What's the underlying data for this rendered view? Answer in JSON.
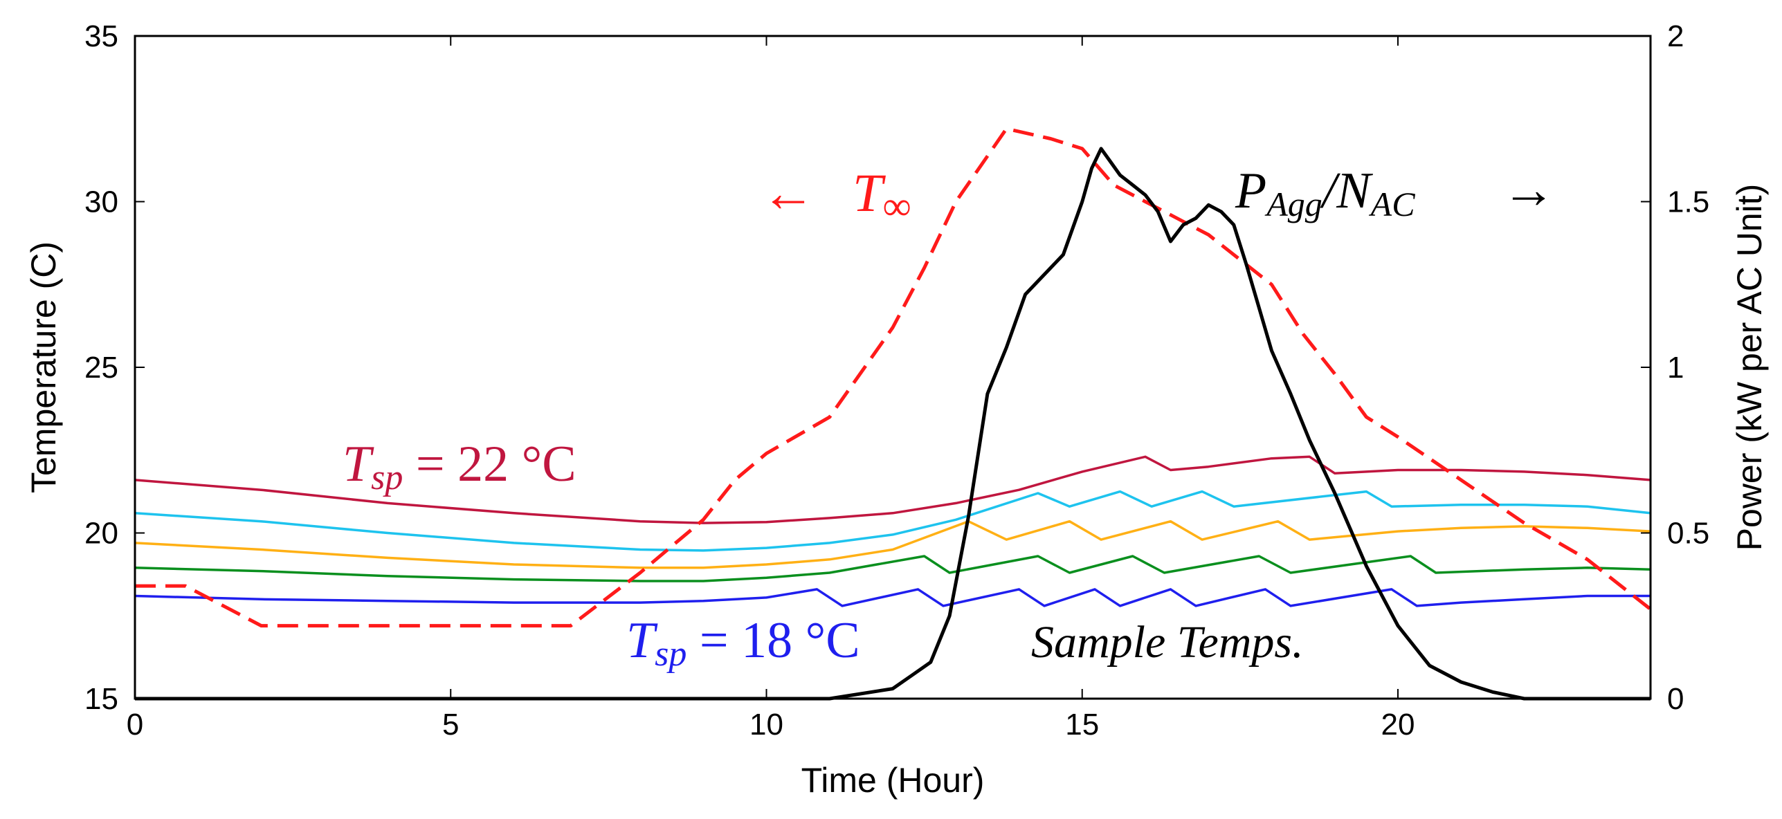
{
  "chart_data": {
    "type": "line",
    "title": "",
    "xlabel": "Time (Hour)",
    "ylabel_left": "Temperature (C)",
    "ylabel_right": "Power (kW per AC Unit)",
    "xlim": [
      0,
      24
    ],
    "ylim_left": [
      15,
      35
    ],
    "ylim_right": [
      0,
      2
    ],
    "x_ticks": [
      "0",
      "5",
      "10",
      "15",
      "20"
    ],
    "y_left_ticks": [
      "15",
      "20",
      "25",
      "30",
      "35"
    ],
    "y_right_ticks": [
      "0",
      "0.5",
      "1",
      "1.5",
      "2"
    ],
    "grid": false,
    "colors": {
      "ambient": "#ff1a1a",
      "power": "#000000",
      "sp22": "#c0163f",
      "sp_cyan": "#1ec3ee",
      "sp_orange": "#ffb015",
      "sp_green": "#0a8f1e",
      "sp18": "#1f1fee"
    },
    "annotations": {
      "t_inf_arrow": "←",
      "t_inf_main": "T",
      "t_inf_sub": "∞",
      "p_agg_main": "P",
      "p_agg_sub1": "Agg",
      "p_agg_slash": "/N",
      "p_agg_sub2": "AC",
      "p_agg_arrow": "→",
      "sp22_main": "T",
      "sp22_sub": "sp",
      "sp22_rest": " = 22 °C",
      "sp18_main": "T",
      "sp18_sub": "sp",
      "sp18_rest": " = 18 °C",
      "sample_temps": "Sample Temps."
    },
    "series": [
      {
        "name": "T_inf (ambient)",
        "axis": "left",
        "style": "dashdot",
        "x": [
          0,
          0.8,
          2,
          3,
          4,
          5,
          6,
          6.9,
          8,
          9,
          9.5,
          10,
          11,
          12,
          12.5,
          13,
          13.8,
          14.5,
          15,
          15.5,
          16,
          17,
          18,
          18.5,
          19,
          19.5,
          20,
          21,
          22,
          23,
          24
        ],
        "y": [
          18.4,
          18.4,
          17.2,
          17.2,
          17.2,
          17.2,
          17.2,
          17.2,
          18.8,
          20.4,
          21.6,
          22.4,
          23.5,
          26.2,
          28,
          30,
          32.2,
          31.9,
          31.6,
          30.5,
          30,
          29,
          27.5,
          26,
          24.8,
          23.5,
          22.9,
          21.6,
          20.3,
          19.2,
          17.7
        ]
      },
      {
        "name": "P_Agg/N_AC",
        "axis": "right",
        "style": "solid",
        "x": [
          0,
          10,
          11,
          12,
          12.3,
          12.6,
          12.9,
          13.2,
          13.5,
          13.8,
          14.1,
          14.4,
          14.7,
          15,
          15.15,
          15.3,
          15.45,
          15.6,
          15.8,
          16,
          16.2,
          16.4,
          16.6,
          16.8,
          17,
          17.2,
          17.4,
          17.6,
          17.8,
          18,
          18.3,
          18.6,
          19,
          19.5,
          20,
          20.5,
          21,
          21.5,
          22,
          23,
          24
        ],
        "y": [
          0,
          0,
          0,
          0.03,
          0.07,
          0.11,
          0.25,
          0.55,
          0.92,
          1.06,
          1.22,
          1.28,
          1.34,
          1.5,
          1.6,
          1.66,
          1.62,
          1.58,
          1.55,
          1.52,
          1.47,
          1.38,
          1.43,
          1.45,
          1.49,
          1.47,
          1.43,
          1.31,
          1.18,
          1.05,
          0.92,
          0.78,
          0.62,
          0.4,
          0.22,
          0.1,
          0.05,
          0.02,
          0,
          0,
          0
        ]
      },
      {
        "name": "T_sp = 22 °C",
        "axis": "left",
        "style": "solid",
        "x": [
          0,
          2,
          4,
          6,
          8,
          9,
          10,
          11,
          12,
          13,
          14,
          15,
          16,
          16.4,
          17,
          18,
          18.6,
          19,
          20,
          21,
          22,
          23,
          24
        ],
        "y": [
          21.6,
          21.3,
          20.9,
          20.6,
          20.35,
          20.3,
          20.33,
          20.45,
          20.6,
          20.9,
          21.3,
          21.85,
          22.3,
          21.9,
          22.0,
          22.25,
          22.3,
          21.8,
          21.9,
          21.9,
          21.85,
          21.75,
          21.6
        ]
      },
      {
        "name": "cyan",
        "axis": "left",
        "style": "solid",
        "x": [
          0,
          2,
          4,
          6,
          8,
          9,
          10,
          11,
          12,
          13,
          14.3,
          14.8,
          15.6,
          16.1,
          16.9,
          17.4,
          19.5,
          19.9,
          21,
          22,
          23,
          24
        ],
        "y": [
          20.6,
          20.35,
          20.0,
          19.7,
          19.5,
          19.47,
          19.55,
          19.7,
          19.95,
          20.4,
          21.2,
          20.8,
          21.25,
          20.8,
          21.25,
          20.8,
          21.25,
          20.8,
          20.85,
          20.85,
          20.8,
          20.6
        ]
      },
      {
        "name": "orange",
        "axis": "left",
        "style": "solid",
        "x": [
          0,
          2,
          4,
          6,
          8,
          9,
          10,
          11,
          12,
          13.2,
          13.8,
          14.8,
          15.3,
          16.4,
          16.9,
          18.1,
          18.6,
          20,
          21,
          22,
          23,
          24
        ],
        "y": [
          19.7,
          19.5,
          19.25,
          19.05,
          18.95,
          18.95,
          19.05,
          19.2,
          19.5,
          20.35,
          19.8,
          20.35,
          19.8,
          20.35,
          19.8,
          20.35,
          19.8,
          20.05,
          20.15,
          20.2,
          20.15,
          20.05
        ]
      },
      {
        "name": "green",
        "axis": "left",
        "style": "solid",
        "x": [
          0,
          2,
          4,
          6,
          8,
          9,
          10,
          11,
          12.5,
          12.9,
          14.3,
          14.8,
          15.8,
          16.3,
          17.8,
          18.3,
          20.2,
          20.6,
          22,
          23,
          24
        ],
        "y": [
          18.95,
          18.85,
          18.7,
          18.6,
          18.55,
          18.55,
          18.65,
          18.8,
          19.3,
          18.8,
          19.3,
          18.8,
          19.3,
          18.8,
          19.3,
          18.8,
          19.3,
          18.8,
          18.9,
          18.95,
          18.9
        ]
      },
      {
        "name": "T_sp = 18 °C",
        "axis": "left",
        "style": "solid",
        "x": [
          0,
          2,
          4,
          6,
          8,
          9,
          10,
          10.8,
          11.2,
          12.4,
          12.8,
          14,
          14.4,
          15.2,
          15.6,
          16.4,
          16.8,
          17.9,
          18.3,
          19.9,
          20.3,
          21,
          22,
          23,
          24
        ],
        "y": [
          18.1,
          18.0,
          17.95,
          17.9,
          17.9,
          17.95,
          18.05,
          18.3,
          17.8,
          18.3,
          17.8,
          18.3,
          17.8,
          18.3,
          17.8,
          18.3,
          17.8,
          18.3,
          17.8,
          18.3,
          17.8,
          17.9,
          18.0,
          18.1,
          18.1
        ]
      }
    ]
  }
}
